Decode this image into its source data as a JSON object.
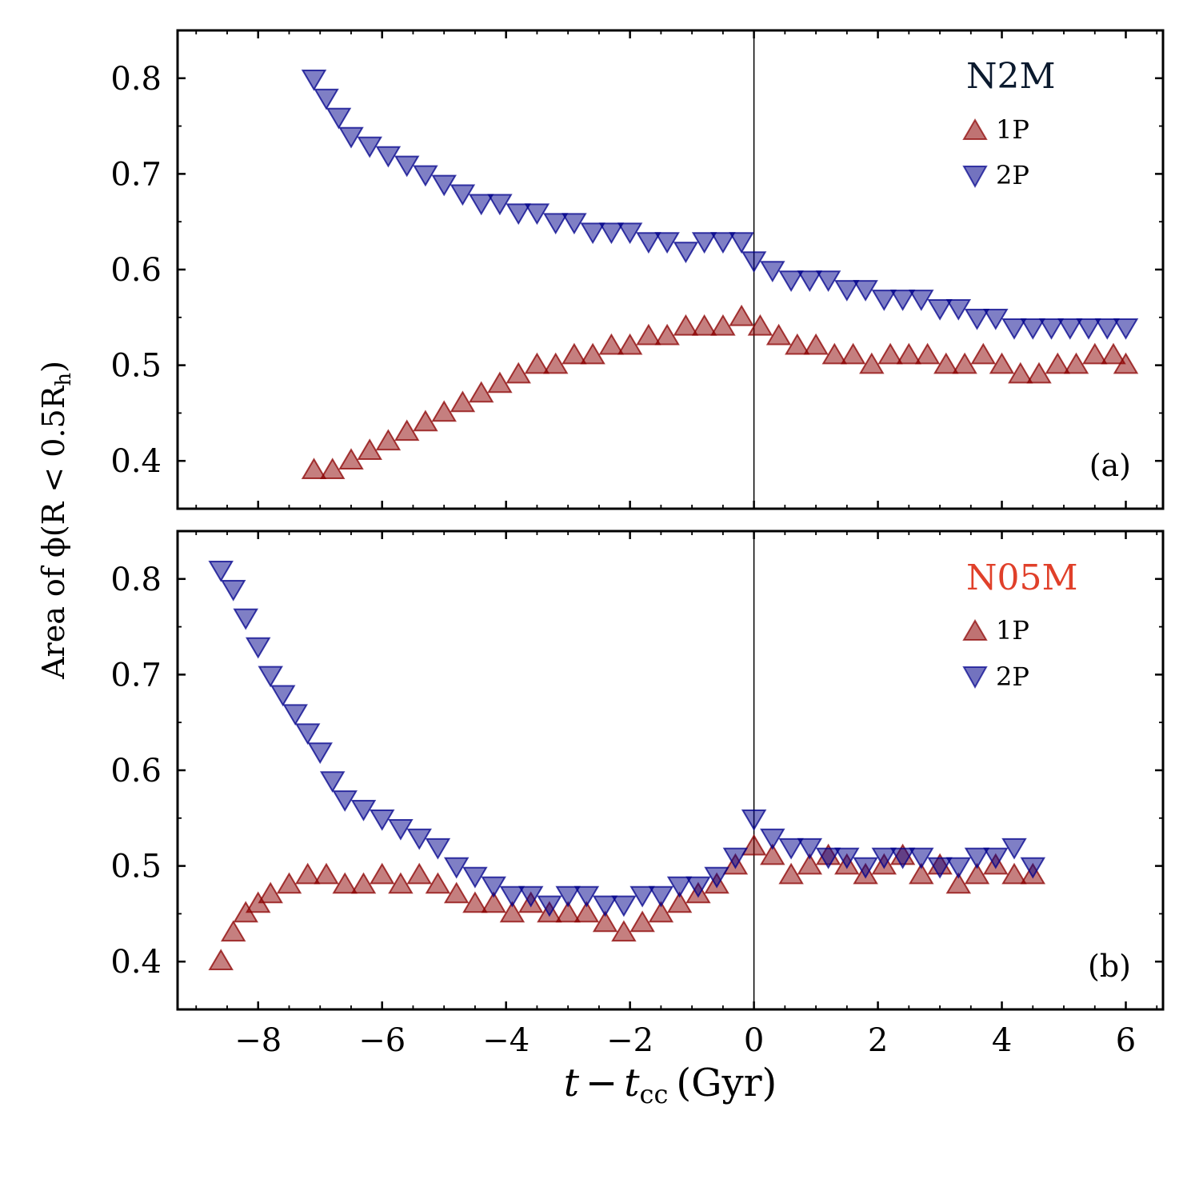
{
  "figure": {
    "ylabel": "Area of ϕ(R < 0.5R",
    "ylabel_sub": "h",
    "ylabel_close": ")",
    "xlabel_t": "t",
    "xlabel_minus": "−",
    "xlabel_t2": "t",
    "xlabel_sub": "cc",
    "xlabel_unit": "(Gyr)"
  },
  "colors": {
    "p1": "#8b0000",
    "p2": "#00008b",
    "n2m_title": "#0b1a2e",
    "n05m_title": "#e0402a"
  },
  "chart_data": [
    {
      "type": "scatter",
      "panel_label": "(a)",
      "legend_title": "N2M",
      "legend_position": "top-right",
      "xlim": [
        -9.3,
        6.6
      ],
      "ylim": [
        0.35,
        0.85
      ],
      "xticks": [
        -8,
        -6,
        -4,
        -2,
        0,
        2,
        4,
        6
      ],
      "xticklabels": [
        "−8",
        "−6",
        "−4",
        "−2",
        "0",
        "2",
        "4",
        "6"
      ],
      "yticks": [
        0.4,
        0.5,
        0.6,
        0.7,
        0.8
      ],
      "yticklabels": [
        "0.4",
        "0.5",
        "0.6",
        "0.7",
        "0.8"
      ],
      "vline_x": 0,
      "series": [
        {
          "name": "1P",
          "marker": "triangle-up",
          "x": [
            -7.1,
            -6.8,
            -6.5,
            -6.2,
            -5.9,
            -5.6,
            -5.3,
            -5.0,
            -4.7,
            -4.4,
            -4.1,
            -3.8,
            -3.5,
            -3.2,
            -2.9,
            -2.6,
            -2.3,
            -2.0,
            -1.7,
            -1.4,
            -1.1,
            -0.8,
            -0.5,
            -0.2,
            0.1,
            0.4,
            0.7,
            1.0,
            1.3,
            1.6,
            1.9,
            2.2,
            2.5,
            2.8,
            3.1,
            3.4,
            3.7,
            4.0,
            4.3,
            4.6,
            4.9,
            5.2,
            5.5,
            5.8,
            6.0
          ],
          "y": [
            0.39,
            0.39,
            0.4,
            0.41,
            0.42,
            0.43,
            0.44,
            0.45,
            0.46,
            0.47,
            0.48,
            0.49,
            0.5,
            0.5,
            0.51,
            0.51,
            0.52,
            0.52,
            0.53,
            0.53,
            0.54,
            0.54,
            0.54,
            0.55,
            0.54,
            0.53,
            0.52,
            0.52,
            0.51,
            0.51,
            0.5,
            0.51,
            0.51,
            0.51,
            0.5,
            0.5,
            0.51,
            0.5,
            0.49,
            0.49,
            0.5,
            0.5,
            0.51,
            0.51,
            0.5
          ]
        },
        {
          "name": "2P",
          "marker": "triangle-down",
          "x": [
            -7.1,
            -6.9,
            -6.7,
            -6.5,
            -6.2,
            -5.9,
            -5.6,
            -5.3,
            -5.0,
            -4.7,
            -4.4,
            -4.1,
            -3.8,
            -3.5,
            -3.2,
            -2.9,
            -2.6,
            -2.3,
            -2.0,
            -1.7,
            -1.4,
            -1.1,
            -0.8,
            -0.5,
            -0.2,
            0.0,
            0.3,
            0.6,
            0.9,
            1.2,
            1.5,
            1.8,
            2.1,
            2.4,
            2.7,
            3.0,
            3.3,
            3.6,
            3.9,
            4.2,
            4.5,
            4.8,
            5.1,
            5.4,
            5.7,
            6.0
          ],
          "y": [
            0.8,
            0.78,
            0.76,
            0.74,
            0.73,
            0.72,
            0.71,
            0.7,
            0.69,
            0.68,
            0.67,
            0.67,
            0.66,
            0.66,
            0.65,
            0.65,
            0.64,
            0.64,
            0.64,
            0.63,
            0.63,
            0.62,
            0.63,
            0.63,
            0.63,
            0.61,
            0.6,
            0.59,
            0.59,
            0.59,
            0.58,
            0.58,
            0.57,
            0.57,
            0.57,
            0.56,
            0.56,
            0.55,
            0.55,
            0.54,
            0.54,
            0.54,
            0.54,
            0.54,
            0.54,
            0.54
          ]
        }
      ]
    },
    {
      "type": "scatter",
      "panel_label": "(b)",
      "legend_title": "N05M",
      "legend_position": "top-right",
      "xlim": [
        -9.3,
        6.6
      ],
      "ylim": [
        0.35,
        0.85
      ],
      "xticks": [
        -8,
        -6,
        -4,
        -2,
        0,
        2,
        4,
        6
      ],
      "xticklabels": [
        "−8",
        "−6",
        "−4",
        "−2",
        "0",
        "2",
        "4",
        "6"
      ],
      "yticks": [
        0.4,
        0.5,
        0.6,
        0.7,
        0.8
      ],
      "yticklabels": [
        "0.4",
        "0.5",
        "0.6",
        "0.7",
        "0.8"
      ],
      "vline_x": 0,
      "series": [
        {
          "name": "1P",
          "marker": "triangle-up",
          "x": [
            -8.6,
            -8.4,
            -8.2,
            -8.0,
            -7.8,
            -7.5,
            -7.2,
            -6.9,
            -6.6,
            -6.3,
            -6.0,
            -5.7,
            -5.4,
            -5.1,
            -4.8,
            -4.5,
            -4.2,
            -3.9,
            -3.6,
            -3.3,
            -3.0,
            -2.7,
            -2.4,
            -2.1,
            -1.8,
            -1.5,
            -1.2,
            -0.9,
            -0.6,
            -0.3,
            0.0,
            0.3,
            0.6,
            0.9,
            1.2,
            1.5,
            1.8,
            2.1,
            2.4,
            2.7,
            3.0,
            3.3,
            3.6,
            3.9,
            4.2,
            4.5
          ],
          "y": [
            0.4,
            0.43,
            0.45,
            0.46,
            0.47,
            0.48,
            0.49,
            0.49,
            0.48,
            0.48,
            0.49,
            0.48,
            0.49,
            0.48,
            0.47,
            0.46,
            0.46,
            0.45,
            0.46,
            0.45,
            0.45,
            0.45,
            0.44,
            0.43,
            0.44,
            0.45,
            0.46,
            0.47,
            0.48,
            0.5,
            0.52,
            0.51,
            0.49,
            0.5,
            0.51,
            0.5,
            0.49,
            0.5,
            0.51,
            0.49,
            0.5,
            0.48,
            0.49,
            0.5,
            0.49,
            0.49
          ]
        },
        {
          "name": "2P",
          "marker": "triangle-down",
          "x": [
            -8.6,
            -8.4,
            -8.2,
            -8.0,
            -7.8,
            -7.6,
            -7.4,
            -7.2,
            -7.0,
            -6.8,
            -6.6,
            -6.3,
            -6.0,
            -5.7,
            -5.4,
            -5.1,
            -4.8,
            -4.5,
            -4.2,
            -3.9,
            -3.6,
            -3.3,
            -3.0,
            -2.7,
            -2.4,
            -2.1,
            -1.8,
            -1.5,
            -1.2,
            -0.9,
            -0.6,
            -0.3,
            0.0,
            0.3,
            0.6,
            0.9,
            1.2,
            1.5,
            1.8,
            2.1,
            2.4,
            2.7,
            3.0,
            3.3,
            3.6,
            3.9,
            4.2,
            4.5
          ],
          "y": [
            0.81,
            0.79,
            0.76,
            0.73,
            0.7,
            0.68,
            0.66,
            0.64,
            0.62,
            0.59,
            0.57,
            0.56,
            0.55,
            0.54,
            0.53,
            0.52,
            0.5,
            0.49,
            0.48,
            0.47,
            0.47,
            0.46,
            0.47,
            0.47,
            0.46,
            0.46,
            0.47,
            0.47,
            0.48,
            0.48,
            0.49,
            0.51,
            0.55,
            0.53,
            0.52,
            0.52,
            0.51,
            0.51,
            0.5,
            0.51,
            0.51,
            0.51,
            0.5,
            0.5,
            0.51,
            0.51,
            0.52,
            0.5
          ]
        }
      ]
    }
  ]
}
